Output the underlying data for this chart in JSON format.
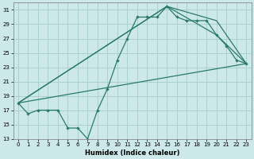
{
  "xlabel": "Humidex (Indice chaleur)",
  "bg_color": "#cce8e8",
  "grid_color": "#aad0d0",
  "line_color": "#2a7a6a",
  "xlim": [
    -0.5,
    23.5
  ],
  "ylim": [
    13,
    32
  ],
  "yticks": [
    13,
    15,
    17,
    19,
    21,
    23,
    25,
    27,
    29,
    31
  ],
  "xticks": [
    0,
    1,
    2,
    3,
    4,
    5,
    6,
    7,
    8,
    9,
    10,
    11,
    12,
    13,
    14,
    15,
    16,
    17,
    18,
    19,
    20,
    21,
    22,
    23
  ],
  "line1_x": [
    0,
    1,
    2,
    3,
    4,
    5,
    6,
    7,
    8,
    9,
    10,
    11,
    12,
    13,
    14,
    15,
    16,
    17,
    18,
    19,
    20,
    21,
    22,
    23
  ],
  "line1_y": [
    18.0,
    16.5,
    17.0,
    17.0,
    17.0,
    14.5,
    14.5,
    13.0,
    17.0,
    20.0,
    24.0,
    27.0,
    30.0,
    30.0,
    30.0,
    31.5,
    30.0,
    29.5,
    29.5,
    29.5,
    27.5,
    26.0,
    24.0,
    23.5
  ],
  "line2_x": [
    0,
    15,
    20,
    23
  ],
  "line2_y": [
    18.0,
    31.5,
    27.5,
    23.5
  ],
  "line3_x": [
    0,
    15,
    20,
    23
  ],
  "line3_y": [
    18.0,
    31.5,
    29.5,
    23.5
  ],
  "line4_x": [
    0,
    23
  ],
  "line4_y": [
    18.0,
    23.5
  ]
}
